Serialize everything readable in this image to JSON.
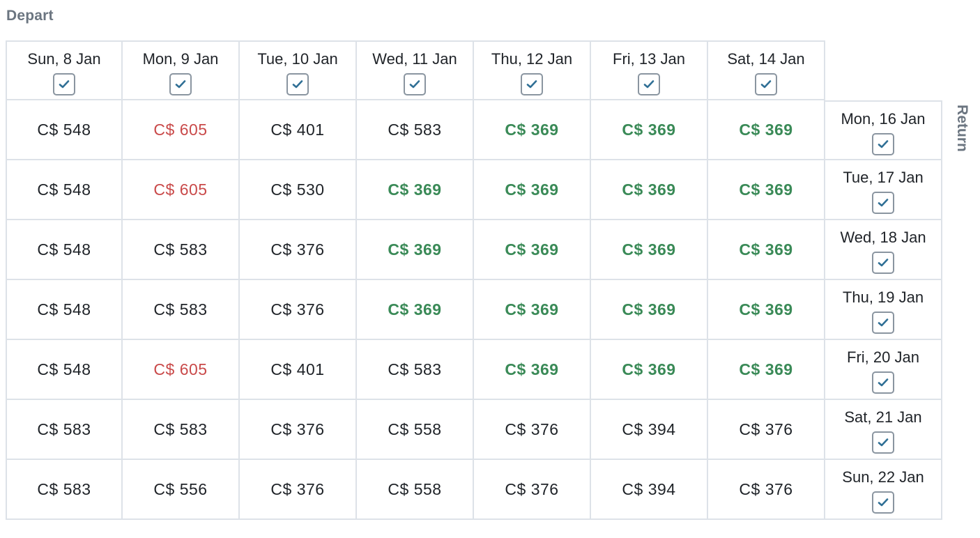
{
  "labels": {
    "depart": "Depart",
    "return": "Return"
  },
  "depart_dates": [
    {
      "label": "Sun, 8 Jan",
      "checked": true
    },
    {
      "label": "Mon, 9 Jan",
      "checked": true
    },
    {
      "label": "Tue, 10 Jan",
      "checked": true
    },
    {
      "label": "Wed, 11 Jan",
      "checked": true
    },
    {
      "label": "Thu, 12 Jan",
      "checked": true
    },
    {
      "label": "Fri, 13 Jan",
      "checked": true
    },
    {
      "label": "Sat, 14 Jan",
      "checked": true
    }
  ],
  "return_dates": [
    {
      "label": "Mon, 16 Jan",
      "checked": true
    },
    {
      "label": "Tue, 17 Jan",
      "checked": true
    },
    {
      "label": "Wed, 18 Jan",
      "checked": true
    },
    {
      "label": "Thu, 19 Jan",
      "checked": true
    },
    {
      "label": "Fri, 20 Jan",
      "checked": true
    },
    {
      "label": "Sat, 21 Jan",
      "checked": true
    },
    {
      "label": "Sun, 22 Jan",
      "checked": true
    }
  ],
  "price_levels": {
    "high_color": "#c94a4a",
    "low_color": "#3a8a57",
    "normal_color": "#1f2328"
  },
  "prices": [
    [
      {
        "v": "C$ 548",
        "t": "n"
      },
      {
        "v": "C$ 605",
        "t": "h"
      },
      {
        "v": "C$ 401",
        "t": "n"
      },
      {
        "v": "C$ 583",
        "t": "n"
      },
      {
        "v": "C$ 369",
        "t": "l"
      },
      {
        "v": "C$ 369",
        "t": "l"
      },
      {
        "v": "C$ 369",
        "t": "l"
      }
    ],
    [
      {
        "v": "C$ 548",
        "t": "n"
      },
      {
        "v": "C$ 605",
        "t": "h"
      },
      {
        "v": "C$ 530",
        "t": "n"
      },
      {
        "v": "C$ 369",
        "t": "l"
      },
      {
        "v": "C$ 369",
        "t": "l"
      },
      {
        "v": "C$ 369",
        "t": "l"
      },
      {
        "v": "C$ 369",
        "t": "l"
      }
    ],
    [
      {
        "v": "C$ 548",
        "t": "n"
      },
      {
        "v": "C$ 583",
        "t": "n"
      },
      {
        "v": "C$ 376",
        "t": "n"
      },
      {
        "v": "C$ 369",
        "t": "l"
      },
      {
        "v": "C$ 369",
        "t": "l"
      },
      {
        "v": "C$ 369",
        "t": "l"
      },
      {
        "v": "C$ 369",
        "t": "l"
      }
    ],
    [
      {
        "v": "C$ 548",
        "t": "n"
      },
      {
        "v": "C$ 583",
        "t": "n"
      },
      {
        "v": "C$ 376",
        "t": "n"
      },
      {
        "v": "C$ 369",
        "t": "l"
      },
      {
        "v": "C$ 369",
        "t": "l"
      },
      {
        "v": "C$ 369",
        "t": "l"
      },
      {
        "v": "C$ 369",
        "t": "l"
      }
    ],
    [
      {
        "v": "C$ 548",
        "t": "n"
      },
      {
        "v": "C$ 605",
        "t": "h"
      },
      {
        "v": "C$ 401",
        "t": "n"
      },
      {
        "v": "C$ 583",
        "t": "n"
      },
      {
        "v": "C$ 369",
        "t": "l"
      },
      {
        "v": "C$ 369",
        "t": "l"
      },
      {
        "v": "C$ 369",
        "t": "l"
      }
    ],
    [
      {
        "v": "C$ 583",
        "t": "n"
      },
      {
        "v": "C$ 583",
        "t": "n"
      },
      {
        "v": "C$ 376",
        "t": "n"
      },
      {
        "v": "C$ 558",
        "t": "n"
      },
      {
        "v": "C$ 376",
        "t": "n"
      },
      {
        "v": "C$ 394",
        "t": "n"
      },
      {
        "v": "C$ 376",
        "t": "n"
      }
    ],
    [
      {
        "v": "C$ 583",
        "t": "n"
      },
      {
        "v": "C$ 556",
        "t": "n"
      },
      {
        "v": "C$ 376",
        "t": "n"
      },
      {
        "v": "C$ 558",
        "t": "n"
      },
      {
        "v": "C$ 376",
        "t": "n"
      },
      {
        "v": "C$ 394",
        "t": "n"
      },
      {
        "v": "C$ 376",
        "t": "n"
      }
    ]
  ],
  "icons": {
    "checkbox": "check-icon",
    "check_color": "#2f6f95"
  }
}
